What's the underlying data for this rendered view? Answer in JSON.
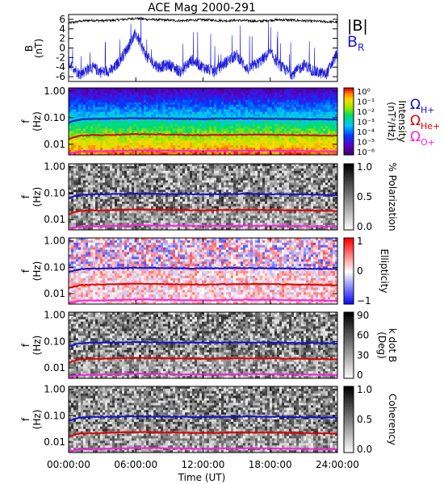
{
  "title": "ACE Mag 2000-291",
  "x_axis": {
    "label": "Time (UT)",
    "ticks": [
      "00:00:00",
      "06:00:00",
      "12:00:00",
      "18:00:00",
      "24:00:00"
    ]
  },
  "freq_axis": {
    "label_f": "f",
    "label_unit": "(Hz)",
    "ticks": [
      "1.00",
      "0.10",
      "0.01"
    ]
  },
  "colors": {
    "b_total": "#000000",
    "b_r": "#1a1ad9",
    "omega_h": "#1010d0",
    "omega_he": "#e00000",
    "omega_o": "#ff20e0"
  },
  "chart_data": [
    {
      "type": "line",
      "panel": "magnetic field",
      "ylabel": "B (nT)",
      "ylim": [
        -7,
        7
      ],
      "yticks": [
        "6",
        "4",
        "2",
        "0",
        "-2",
        "-4",
        "-6"
      ],
      "xlim": [
        0,
        24
      ],
      "series": [
        {
          "name": "|B|",
          "x": [
            0,
            1,
            2,
            3,
            4,
            5,
            6,
            7,
            8,
            9,
            10,
            11,
            12,
            13,
            14,
            15,
            16,
            17,
            18,
            19,
            20,
            21,
            22,
            23,
            24
          ],
          "values": [
            5.2,
            5.6,
            5.8,
            5.7,
            5.8,
            6.0,
            6.2,
            6.0,
            5.9,
            5.8,
            5.7,
            5.8,
            5.9,
            5.8,
            5.7,
            5.8,
            5.7,
            5.6,
            5.8,
            5.9,
            5.8,
            5.7,
            5.6,
            5.5,
            5.4
          ]
        },
        {
          "name": "B",
          "subscript": "R",
          "x": [
            0,
            1,
            2,
            3,
            4,
            5,
            6,
            7,
            8,
            9,
            10,
            11,
            12,
            13,
            14,
            15,
            16,
            17,
            18,
            19,
            20,
            21,
            22,
            23,
            24
          ],
          "values": [
            -3.0,
            -5.5,
            -4.0,
            -5.0,
            -4.5,
            -1.0,
            3.0,
            -2.0,
            -4.0,
            -3.5,
            -5.0,
            -2.5,
            -4.0,
            -5.0,
            -3.0,
            -1.5,
            -4.5,
            -3.0,
            -1.0,
            -4.0,
            -5.5,
            -3.5,
            -5.0,
            -5.5,
            -1.0
          ]
        }
      ]
    },
    {
      "type": "heatmap",
      "panel": "intensity",
      "ylabel": "f (Hz)",
      "yscale": "log",
      "ylim": [
        0.004,
        1.3
      ],
      "colorbar": {
        "label": "Intensity (nT²/Hz)",
        "scale": "log",
        "ticks": [
          "10⁰",
          "10⁻¹",
          "10⁻²",
          "10⁻³",
          "10⁻⁴",
          "10⁻⁵",
          "10⁻⁶"
        ],
        "range": [
          1e-06,
          1
        ]
      },
      "legend": [
        "Ω",
        "H+",
        "Ω",
        "He+",
        "Ω",
        "O+"
      ],
      "series": [
        {
          "name": "Ω H+",
          "x": [
            0,
            1,
            2,
            3,
            6,
            9,
            12,
            15,
            18,
            21,
            24
          ],
          "values": [
            0.065,
            0.085,
            0.09,
            0.09,
            0.095,
            0.092,
            0.09,
            0.093,
            0.092,
            0.088,
            0.085
          ]
        },
        {
          "name": "Ω He+",
          "x": [
            0,
            1,
            2,
            3,
            6,
            9,
            12,
            15,
            18,
            21,
            24
          ],
          "values": [
            0.016,
            0.021,
            0.022,
            0.022,
            0.024,
            0.023,
            0.022,
            0.023,
            0.023,
            0.022,
            0.021
          ]
        },
        {
          "name": "Ω O+",
          "x": [
            0,
            1,
            2,
            3,
            6,
            9,
            12,
            15,
            18,
            21,
            24
          ],
          "values": [
            0.0045,
            0.0053,
            0.0055,
            0.0055,
            0.006,
            0.0058,
            0.0056,
            0.0058,
            0.0058,
            0.0056,
            0.0053
          ]
        }
      ]
    },
    {
      "type": "heatmap",
      "panel": "polarization",
      "ylabel": "f (Hz)",
      "colorbar": {
        "label": "% Polarization",
        "ticks": [
          "1.0",
          "0.5",
          "0.0"
        ],
        "range": [
          0,
          1
        ]
      }
    },
    {
      "type": "heatmap",
      "panel": "ellipticity",
      "ylabel": "f (Hz)",
      "colorbar": {
        "label": "Ellipticity",
        "ticks": [
          "1",
          "0",
          "−1"
        ],
        "range": [
          -1,
          1
        ]
      }
    },
    {
      "type": "heatmap",
      "panel": "k dot B",
      "ylabel": "f (Hz)",
      "colorbar": {
        "label": "k dot B (Deg)",
        "ticks": [
          "90",
          "60",
          "30",
          "0"
        ],
        "range": [
          0,
          90
        ]
      }
    },
    {
      "type": "heatmap",
      "panel": "coherency",
      "ylabel": "f (Hz)",
      "colorbar": {
        "label": "Coherency",
        "ticks": [
          "1.0",
          "0.5",
          "0.0"
        ],
        "range": [
          0,
          1
        ]
      }
    }
  ]
}
